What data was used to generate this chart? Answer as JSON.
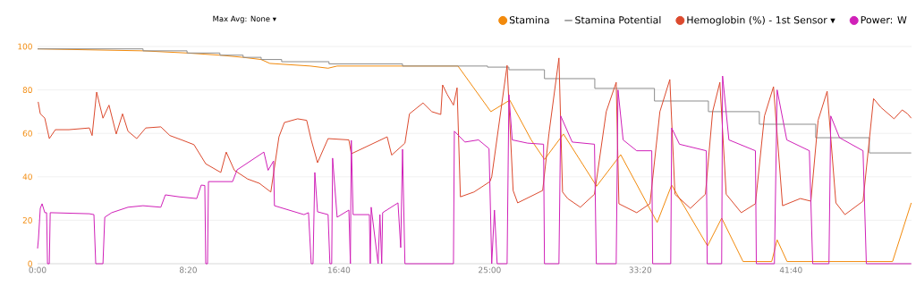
{
  "chart_data": {
    "type": "line",
    "xlim": [
      0,
      2900
    ],
    "ylim": [
      0,
      100
    ],
    "xticks": [
      {
        "value": 0,
        "label": "0:00"
      },
      {
        "value": 500,
        "label": "8:20"
      },
      {
        "value": 1000,
        "label": "16:40"
      },
      {
        "value": 1500,
        "label": "25:00"
      },
      {
        "value": 2000,
        "label": "33:20"
      },
      {
        "value": 2500,
        "label": "41:40"
      }
    ],
    "yticks": [
      0,
      20,
      40,
      60,
      80,
      100
    ],
    "grid": "y",
    "legend": "top",
    "annotations": [
      "Max Avg: None ▾"
    ],
    "series": [
      {
        "name": "Stamina",
        "color": "#f28a0c",
        "x": [
          0,
          350,
          496,
          605,
          682,
          742,
          771,
          905,
          964,
          994,
          1395,
          1504,
          1567,
          1638,
          1682,
          1745,
          1855,
          1935,
          2056,
          2104,
          2223,
          2270,
          2341,
          2436,
          2454,
          2487,
          2837,
          2899
        ],
        "values": [
          98.9,
          98,
          97,
          96,
          95,
          94,
          92.2,
          91,
          90,
          91,
          91,
          70,
          75.3,
          57,
          48,
          59.7,
          35.7,
          50.2,
          19,
          36.2,
          8.2,
          21,
          1,
          1,
          11,
          1,
          1,
          28
        ]
      },
      {
        "name": "Stamina Potential",
        "color": "#8c8c8c",
        "type": "step",
        "x": [
          0,
          350,
          496,
          605,
          682,
          742,
          810,
          967,
          1211,
          1493,
          1564,
          1682,
          1849,
          2047,
          2226,
          2395,
          2582,
          2760,
          2899
        ],
        "values": [
          98.9,
          98,
          97,
          96,
          95,
          94,
          93,
          92,
          91,
          90.5,
          89.3,
          85.2,
          80.7,
          74.9,
          70,
          64.2,
          58,
          51,
          51
        ]
      },
      {
        "name": "Hemoglobin (%) - 1st Sensor ▾",
        "color": "#dc4a2e",
        "x": [
          2,
          9,
          24,
          39,
          59,
          104,
          172,
          181,
          196,
          217,
          237,
          261,
          282,
          300,
          329,
          359,
          409,
          439,
          478,
          519,
          558,
          608,
          626,
          653,
          697,
          736,
          774,
          801,
          819,
          863,
          893,
          908,
          929,
          964,
          1033,
          1041,
          1160,
          1175,
          1219,
          1234,
          1279,
          1308,
          1338,
          1344,
          1359,
          1380,
          1392,
          1403,
          1448,
          1501,
          1507,
          1558,
          1578,
          1593,
          1676,
          1697,
          1730,
          1742,
          1759,
          1801,
          1848,
          1887,
          1920,
          1929,
          1988,
          2032,
          2065,
          2098,
          2115,
          2166,
          2216,
          2240,
          2264,
          2285,
          2335,
          2382,
          2412,
          2442,
          2472,
          2531,
          2566,
          2590,
          2620,
          2649,
          2679,
          2739,
          2774,
          2798,
          2842,
          2869,
          2887,
          2899
        ],
        "values": [
          74.5,
          69,
          67,
          57.6,
          61.7,
          61.7,
          62.5,
          59,
          79,
          67,
          73,
          59.7,
          69,
          61,
          57.6,
          62.5,
          63,
          59,
          57,
          54.8,
          46,
          42,
          51.4,
          43,
          39,
          37,
          33,
          58.4,
          65,
          66.7,
          66,
          57,
          46.5,
          57.6,
          57,
          50.6,
          58.4,
          50,
          55.5,
          69,
          74,
          70,
          68.7,
          82.3,
          78,
          73,
          81,
          30.8,
          33,
          37.8,
          40,
          91.3,
          33.7,
          28,
          33.7,
          60,
          94.7,
          33,
          30,
          26,
          32,
          70,
          83.5,
          27.6,
          23.5,
          27.6,
          70,
          84.8,
          32,
          25.5,
          32,
          70,
          83.5,
          32,
          23.5,
          27.6,
          68,
          81.5,
          26.7,
          30,
          28.8,
          66,
          79.4,
          28,
          22.6,
          28.8,
          76,
          72,
          66.7,
          70.8,
          69,
          67
        ]
      },
      {
        "name": "Power: W",
        "color": "#d020b8",
        "x": [
          0,
          3,
          9,
          15,
          24,
          30,
          33,
          39,
          42,
          172,
          187,
          193,
          217,
          223,
          246,
          300,
          350,
          409,
          424,
          469,
          528,
          543,
          555,
          558,
          564,
          567,
          647,
          662,
          751,
          765,
          783,
          786,
          884,
          899,
          908,
          914,
          920,
          929,
          964,
          970,
          976,
          979,
          994,
          1033,
          1038,
          1041,
          1047,
          1101,
          1104,
          1107,
          1130,
          1136,
          1142,
          1145,
          1196,
          1205,
          1211,
          1219,
          1380,
          1383,
          1418,
          1463,
          1498,
          1507,
          1516,
          1525,
          1558,
          1564,
          1575,
          1626,
          1679,
          1682,
          1730,
          1736,
          1774,
          1848,
          1854,
          1920,
          1926,
          1943,
          1988,
          2038,
          2041,
          2101,
          2104,
          2130,
          2219,
          2222,
          2270,
          2273,
          2294,
          2382,
          2385,
          2445,
          2454,
          2486,
          2561,
          2572,
          2626,
          2632,
          2661,
          2739,
          2750,
          2899
        ],
        "values": [
          7,
          11.5,
          25.5,
          27.6,
          23.5,
          23.5,
          0,
          0,
          23.5,
          23,
          22.6,
          0,
          0,
          21.4,
          23.5,
          26,
          26.7,
          26,
          31.7,
          30.8,
          30,
          36.2,
          36,
          0,
          0,
          37.8,
          37.8,
          43.2,
          51.4,
          43,
          47.3,
          26.7,
          22.6,
          23.5,
          0,
          0,
          42,
          23.9,
          22.6,
          0,
          0,
          48.6,
          21.4,
          24.7,
          0,
          56.8,
          22.6,
          22.6,
          0,
          26,
          0,
          22.6,
          0,
          23.5,
          28,
          7.4,
          52.7,
          0,
          0,
          61,
          56,
          57,
          53,
          0,
          24.7,
          0,
          0,
          77.8,
          57,
          55.5,
          55,
          0,
          0,
          68,
          56,
          55,
          0,
          0,
          80,
          57,
          52,
          52,
          0,
          0,
          62.5,
          55,
          52,
          0,
          0,
          86.4,
          57,
          52,
          0,
          0,
          80,
          57,
          52,
          0,
          0,
          68,
          58,
          52,
          0,
          0
        ]
      }
    ]
  }
}
